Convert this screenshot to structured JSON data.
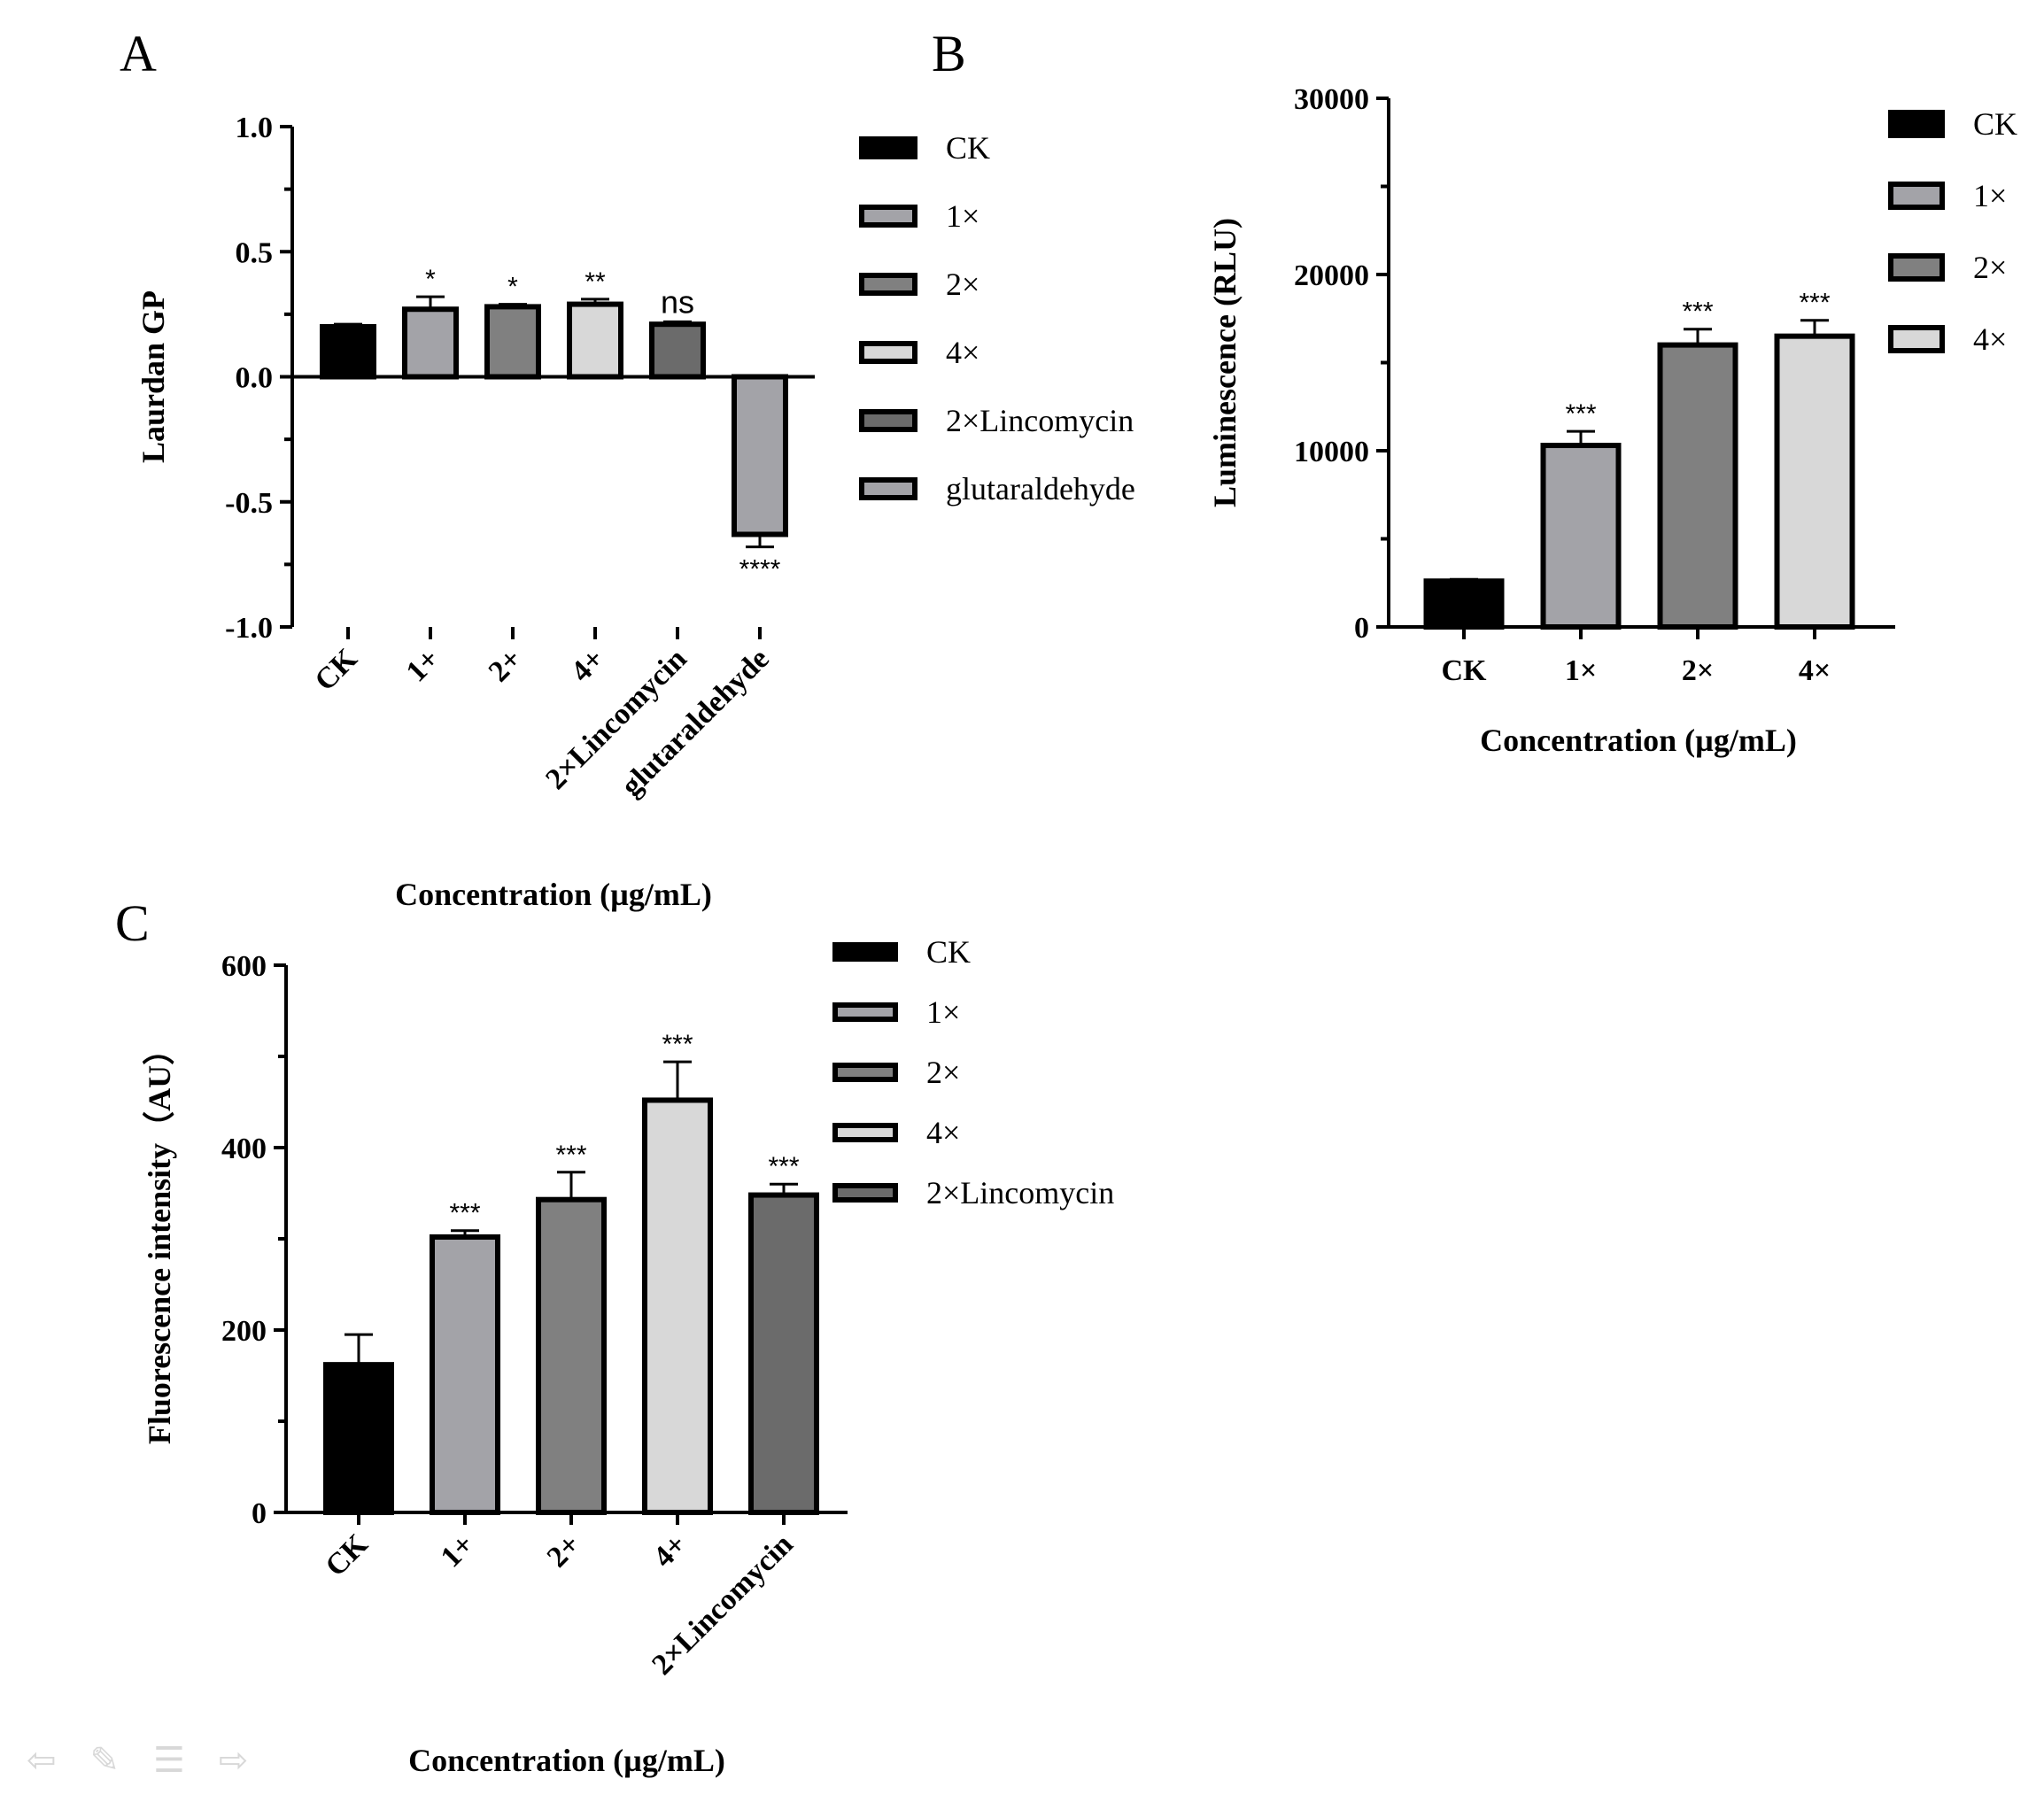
{
  "chart_data": [
    {
      "panel": "A",
      "type": "bar",
      "ylabel": "Laurdan GP",
      "xlabel": "Concentration (µg/mL)",
      "ylim": [
        -1.0,
        1.0
      ],
      "yticks": [
        "1.0",
        "0.5",
        "0.0",
        "-0.5",
        "-1.0"
      ],
      "categories": [
        "CK",
        "1+",
        "2+",
        "4+",
        "2×Lincomycin",
        "glutaraldehyde"
      ],
      "values": [
        0.2,
        0.27,
        0.28,
        0.29,
        0.21,
        -0.63
      ],
      "errors": [
        0.01,
        0.05,
        0.01,
        0.02,
        0.01,
        0.05
      ],
      "significance": [
        "",
        "*",
        "*",
        "**",
        "ns",
        "****"
      ],
      "colors": [
        "#000000",
        "#a3a3a8",
        "#808080",
        "#d8d8d8",
        "#6b6b6b",
        "#a3a3a8"
      ],
      "legend": [
        "CK",
        "1×",
        "2×",
        "4×",
        "2×Lincomycin",
        "glutaraldehyde"
      ],
      "legend_colors": [
        "#000000",
        "#a3a3a8",
        "#808080",
        "#d8d8d8",
        "#6b6b6b",
        "#a3a3a8"
      ]
    },
    {
      "panel": "B",
      "type": "bar",
      "ylabel": "Luminescence (RLU)",
      "xlabel": "Concentration (µg/mL)",
      "ylim": [
        0,
        30000
      ],
      "yticks": [
        "30000",
        "20000",
        "10000",
        "0"
      ],
      "categories": [
        "CK",
        "1×",
        "2×",
        "4×"
      ],
      "values": [
        2600,
        10300,
        16000,
        16500
      ],
      "errors": [
        100,
        800,
        900,
        900
      ],
      "significance": [
        "",
        "***",
        "***",
        "***"
      ],
      "colors": [
        "#000000",
        "#a3a3a8",
        "#808080",
        "#d8d8d8"
      ],
      "legend": [
        "CK",
        "1×",
        "2×",
        "4×"
      ],
      "legend_colors": [
        "#000000",
        "#a3a3a8",
        "#808080",
        "#d8d8d8"
      ]
    },
    {
      "panel": "C",
      "type": "bar",
      "ylabel": "Fluorescence intensity（AU）",
      "xlabel": "Concentration (µg/mL)",
      "ylim": [
        0,
        600
      ],
      "yticks": [
        "600",
        "400",
        "200",
        "0"
      ],
      "categories": [
        "CK",
        "1+",
        "2+",
        "4+",
        "2×Lincomycin"
      ],
      "values": [
        162,
        302,
        343,
        452,
        348
      ],
      "errors": [
        33,
        7,
        30,
        42,
        12
      ],
      "significance": [
        "",
        "***",
        "***",
        "***",
        "***"
      ],
      "colors": [
        "#000000",
        "#a3a3a8",
        "#808080",
        "#d8d8d8",
        "#6b6b6b"
      ],
      "legend": [
        "CK",
        "1×",
        "2×",
        "4×",
        "2×Lincomycin"
      ],
      "legend_colors": [
        "#000000",
        "#a3a3a8",
        "#808080",
        "#d8d8d8",
        "#6b6b6b"
      ]
    }
  ],
  "nav_icons": [
    "arrow-left-icon",
    "pen-icon",
    "menu-icon",
    "arrow-right-icon"
  ]
}
